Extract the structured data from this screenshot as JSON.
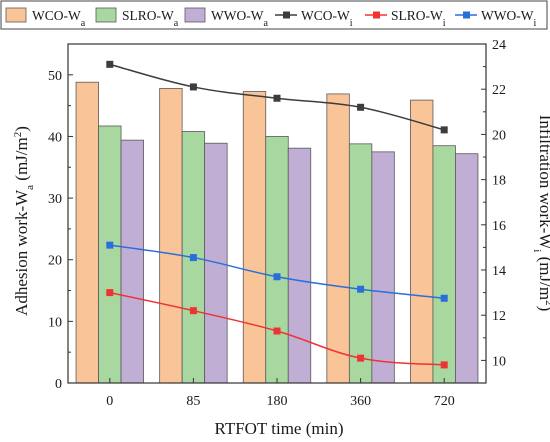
{
  "chart_data": {
    "type": "bar+line",
    "categories": [
      "0",
      "85",
      "180",
      "360",
      "720"
    ],
    "xlabel": "RTFOT time (min)",
    "ylabel_left": {
      "main": "Adhesion work-W",
      "sub": "a",
      "unit": " (mJ/m",
      "sup": "2",
      "close": ")"
    },
    "ylabel_right": {
      "main": "Infiltration work-W",
      "sub": "i",
      "unit": " (mJ/m",
      "sup": "2",
      "close": ")"
    },
    "ylim_left": [
      0,
      55
    ],
    "yticks_left": [
      0,
      10,
      20,
      30,
      40,
      50
    ],
    "ylim_right": [
      9,
      24
    ],
    "yticks_right": [
      10,
      12,
      14,
      16,
      18,
      20,
      22,
      24
    ],
    "legend_position": "top",
    "grid": false,
    "bar_series": [
      {
        "name": "WCO-W",
        "sub": "a",
        "color": "#f9c497",
        "values": [
          48.8,
          47.8,
          47.3,
          46.9,
          45.9
        ]
      },
      {
        "name": "SLRO-W",
        "sub": "a",
        "color": "#a8d8a0",
        "values": [
          41.7,
          40.8,
          40.0,
          38.8,
          38.5
        ]
      },
      {
        "name": "WWO-W",
        "sub": "a",
        "color": "#c0aed5",
        "values": [
          39.4,
          38.9,
          38.1,
          37.5,
          37.2
        ]
      }
    ],
    "line_series": [
      {
        "name": "WCO-W",
        "sub": "i",
        "color": "#3d3d3d",
        "values": [
          23.1,
          22.1,
          21.6,
          21.2,
          20.2
        ]
      },
      {
        "name": "SLRO-W",
        "sub": "i",
        "color": "#ee3333",
        "values": [
          13.0,
          12.2,
          11.3,
          10.1,
          9.8
        ]
      },
      {
        "name": "WWO-W",
        "sub": "i",
        "color": "#2a6edb",
        "values": [
          15.1,
          14.55,
          13.7,
          13.15,
          12.75
        ]
      }
    ]
  }
}
